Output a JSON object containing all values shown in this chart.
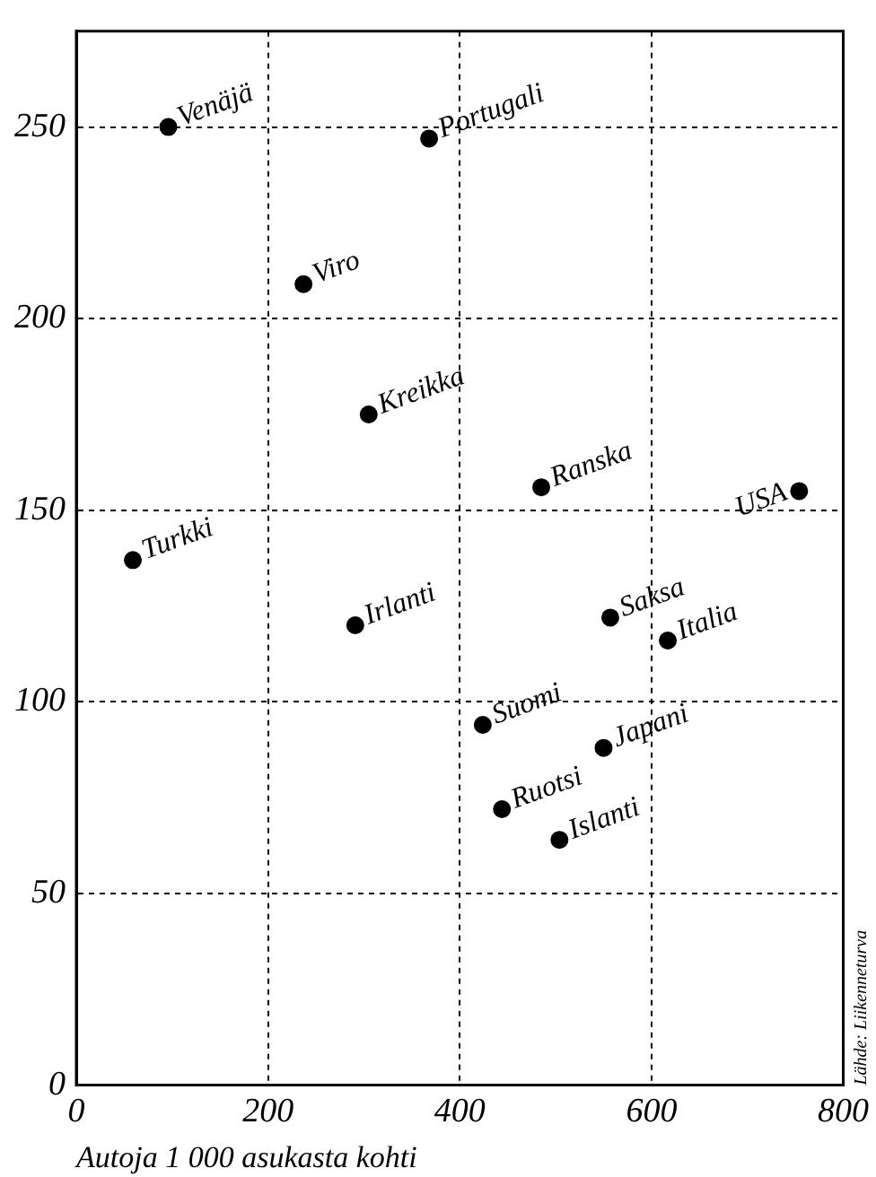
{
  "chart_data": {
    "type": "scatter",
    "xlabel": "Autoja 1 000 asukasta kohti",
    "x": [
      96,
      368,
      237,
      305,
      485,
      754,
      59,
      291,
      557,
      617,
      424,
      550,
      444,
      504
    ],
    "values": [
      250,
      247,
      209,
      175,
      156,
      155,
      137,
      120,
      122,
      116,
      94,
      88,
      72,
      64
    ],
    "color": "#000000",
    "marker": "circle",
    "xlim": [
      0,
      800
    ],
    "xticks": [
      0,
      200,
      400,
      600,
      800
    ],
    "ylim": [
      0,
      275
    ],
    "yticks": [
      0,
      50,
      100,
      150,
      200,
      250
    ],
    "grid": true,
    "legend": false,
    "annotations": [
      {
        "text": "Venäjä",
        "x": 96,
        "y": 250
      },
      {
        "text": "Portugali",
        "x": 368,
        "y": 247
      },
      {
        "text": "Viro",
        "x": 237,
        "y": 209
      },
      {
        "text": "Kreikka",
        "x": 305,
        "y": 175
      },
      {
        "text": "Ranska",
        "x": 485,
        "y": 156
      },
      {
        "text": "USA",
        "x": 754,
        "y": 155
      },
      {
        "text": "Turkki",
        "x": 59,
        "y": 137
      },
      {
        "text": "Irlanti",
        "x": 291,
        "y": 120
      },
      {
        "text": "Saksa",
        "x": 557,
        "y": 122
      },
      {
        "text": "Italia",
        "x": 617,
        "y": 116
      },
      {
        "text": "Suomi",
        "x": 424,
        "y": 94
      },
      {
        "text": "Japani",
        "x": 550,
        "y": 88
      },
      {
        "text": "Ruotsi",
        "x": 444,
        "y": 72
      },
      {
        "text": "Islanti",
        "x": 504,
        "y": 64
      },
      "Lähde: Liikenneturva"
    ]
  }
}
